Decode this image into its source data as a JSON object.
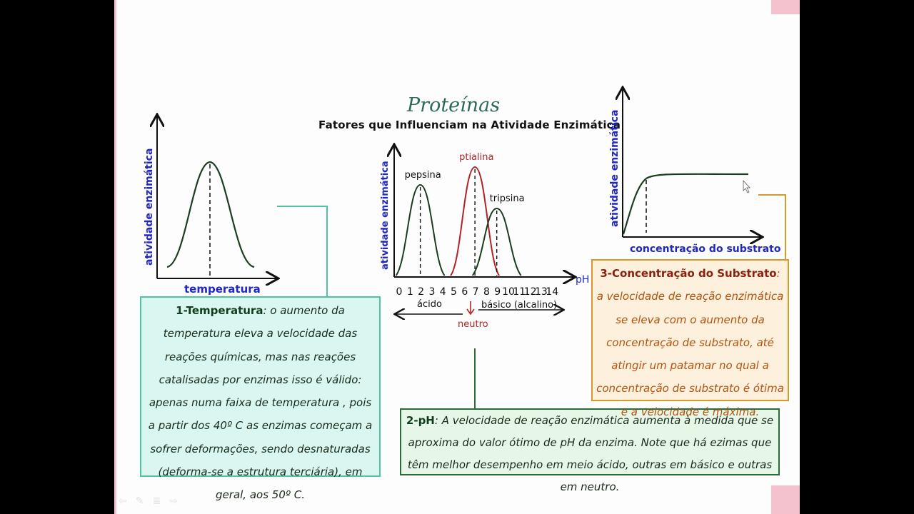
{
  "slide": {
    "title": "Proteínas",
    "subtitle": "Fatores que Influenciam na Atividade Enzimática"
  },
  "chart_data": [
    {
      "type": "line",
      "xlabel": "temperatura",
      "ylabel": "atividade enzimática",
      "series": [
        {
          "shape": "bell",
          "peak": "optimum"
        }
      ]
    },
    {
      "type": "line",
      "xlabel": "pH",
      "ylabel": "atividade enzimática",
      "x_ticks": [
        "0",
        "1",
        "2",
        "3",
        "4",
        "5",
        "6",
        "7",
        "8",
        "9",
        "10",
        "11",
        "12",
        "13",
        "14"
      ],
      "xlim": [
        0,
        14
      ],
      "annotations": {
        "acid": "ácido",
        "basic": "básico (alcalino)",
        "neutral": "neutro"
      },
      "series": [
        {
          "name": "pepsina",
          "peak_ph": 2,
          "color": "#1c3d1f"
        },
        {
          "name": "ptialina",
          "peak_ph": 7,
          "color": "#b02424"
        },
        {
          "name": "tripsina",
          "peak_ph": 9,
          "color": "#1c3d1f"
        }
      ]
    },
    {
      "type": "line",
      "xlabel": "concentração do substrato",
      "ylabel": "atividade enzimática",
      "series": [
        {
          "shape": "saturation",
          "plateau": "maximum"
        }
      ]
    }
  ],
  "boxes": {
    "temperature": {
      "heading": "1-Temperatura",
      "text": ": o aumento da temperatura eleva a velocidade das reações químicas, mas nas reações catalisadas por enzimas isso é válido: apenas numa faixa de temperatura , pois a partir dos 40º C as enzimas começam a sofrer deformações, sendo desnaturadas (deforma-se a estrutura terciária), em geral, aos 50º C."
    },
    "ph": {
      "heading": "2-pH",
      "text": ": A velocidade de reação enzimática aumenta à medida que se aproxima do valor ótimo de pH da enzima.  Note que há ezimas que têm melhor desempenho em meio ácido, outras em básico e outras em neutro."
    },
    "substrate": {
      "heading": "3-Concentração do Substrato",
      "text": ": a velocidade de reação enzimática se eleva com o aumento da concentração de substrato, até  atingir um patamar no qual a concentração de substrato é ótima e a velocidade é máxima."
    }
  },
  "colors": {
    "axis_label": "#1f27c9",
    "curve": "#1c3d1f",
    "ptialina": "#b02424",
    "box1_border": "#4fc3a4",
    "box3_text": "#b5520f"
  },
  "toolbar": [
    "prev-arrow-icon",
    "pen-icon",
    "menu-icon",
    "next-arrow-icon"
  ]
}
